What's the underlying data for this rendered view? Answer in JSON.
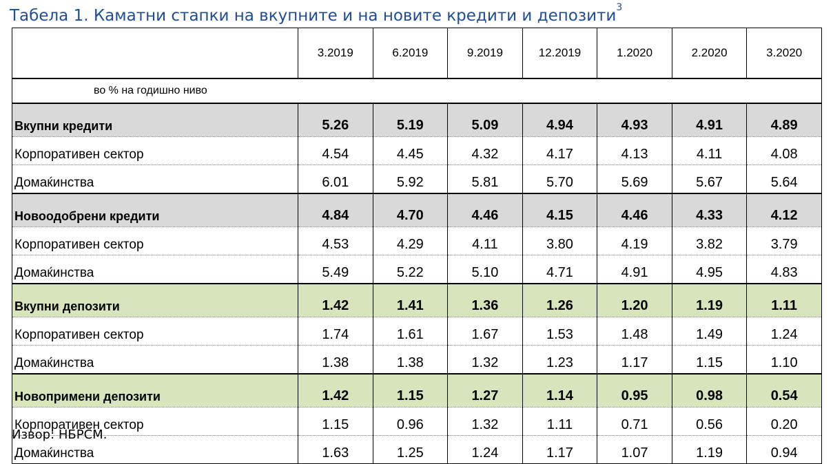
{
  "title": "Табела 1. Каматни стапки на вкупните и на новите кредити и депозити",
  "footnote_ref": "3",
  "columns": [
    "3.2019",
    "6.2019",
    "9.2019",
    "12.2019",
    "1.2020",
    "2.2020",
    "3.2020"
  ],
  "unit": "во % на годишно ниво",
  "sections": [
    {
      "label": "Вкупни кредити",
      "fill": "#d9d9d9",
      "values": [
        "5.26",
        "5.19",
        "5.09",
        "4.94",
        "4.93",
        "4.91",
        "4.89"
      ],
      "rows": [
        {
          "label": "Корпоративен сектор",
          "values": [
            "4.54",
            "4.45",
            "4.32",
            "4.17",
            "4.13",
            "4.11",
            "4.08"
          ]
        },
        {
          "label": "Домаќинства",
          "values": [
            "6.01",
            "5.92",
            "5.81",
            "5.70",
            "5.69",
            "5.67",
            "5.64"
          ]
        }
      ]
    },
    {
      "label": "Новоодобрени кредити",
      "fill": "#d9d9d9",
      "values": [
        "4.84",
        "4.70",
        "4.46",
        "4.15",
        "4.46",
        "4.33",
        "4.12"
      ],
      "rows": [
        {
          "label": "Корпоративен сектор",
          "values": [
            "4.53",
            "4.29",
            "4.11",
            "3.80",
            "4.19",
            "3.82",
            "3.79"
          ]
        },
        {
          "label": "Домаќинства",
          "values": [
            "5.49",
            "5.22",
            "5.10",
            "4.71",
            "4.91",
            "4.95",
            "4.83"
          ]
        }
      ]
    },
    {
      "label": "Вкупни депозити",
      "fill": "#d8e4bc",
      "values": [
        "1.42",
        "1.41",
        "1.36",
        "1.26",
        "1.20",
        "1.19",
        "1.11"
      ],
      "rows": [
        {
          "label": "Корпоративен сектор",
          "values": [
            "1.74",
            "1.61",
            "1.67",
            "1.53",
            "1.48",
            "1.49",
            "1.24"
          ]
        },
        {
          "label": "Домаќинства",
          "values": [
            "1.38",
            "1.38",
            "1.32",
            "1.23",
            "1.17",
            "1.15",
            "1.10"
          ]
        }
      ]
    },
    {
      "label": "Новопримени депозити",
      "fill": "#d8e4bc",
      "values": [
        "1.42",
        "1.15",
        "1.27",
        "1.14",
        "0.95",
        "0.98",
        "0.54"
      ],
      "rows": [
        {
          "label": "Корпоративен сектор",
          "values": [
            "1.15",
            "0.96",
            "1.32",
            "1.11",
            "0.71",
            "0.56",
            "0.20"
          ]
        },
        {
          "label": "Домаќинства",
          "values": [
            "1.63",
            "1.25",
            "1.24",
            "1.17",
            "1.07",
            "1.19",
            "0.94"
          ]
        }
      ]
    }
  ],
  "source": "Извор: НБРСМ."
}
